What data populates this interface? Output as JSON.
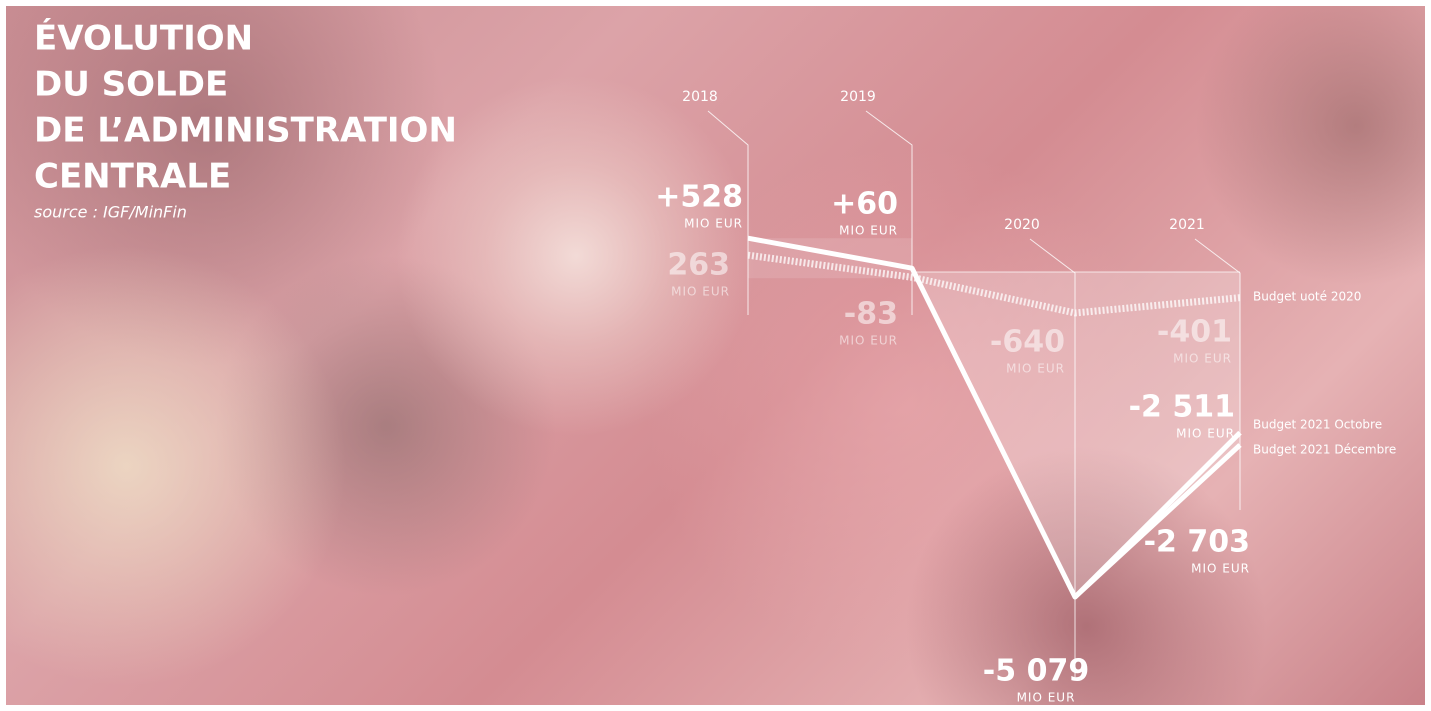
{
  "chart_data": {
    "type": "line",
    "title": [
      "ÉVOLUTION",
      "DU SOLDE",
      "DE L’ADMINISTRATION",
      "CENTRALE"
    ],
    "subtitle": "source : IGF/MinFin",
    "unit": "MIO EUR",
    "categories": [
      "2018",
      "2019",
      "2020",
      "2021"
    ],
    "series": [
      {
        "name": "Budget 2021 Décembre",
        "color": "#ffffff",
        "style": "solid",
        "values": [
          528,
          60,
          -5079,
          -2703
        ],
        "value_labels": [
          "+528",
          "+60",
          "-5 079",
          "-2 703"
        ]
      },
      {
        "name": "Budget 2021 Octobre",
        "color": "#ffffff",
        "style": "solid",
        "values": [
          null,
          null,
          -5079,
          -2511
        ],
        "value_labels": [
          null,
          null,
          null,
          "-2 511"
        ]
      },
      {
        "name": "Budget uoté 2020",
        "color": "#ffffff",
        "style": "dotted",
        "values": [
          263,
          -83,
          -640,
          -401
        ],
        "value_labels": [
          "263",
          "-83",
          "-640",
          "-401"
        ]
      }
    ],
    "ylim": [
      -5300,
      800
    ]
  }
}
